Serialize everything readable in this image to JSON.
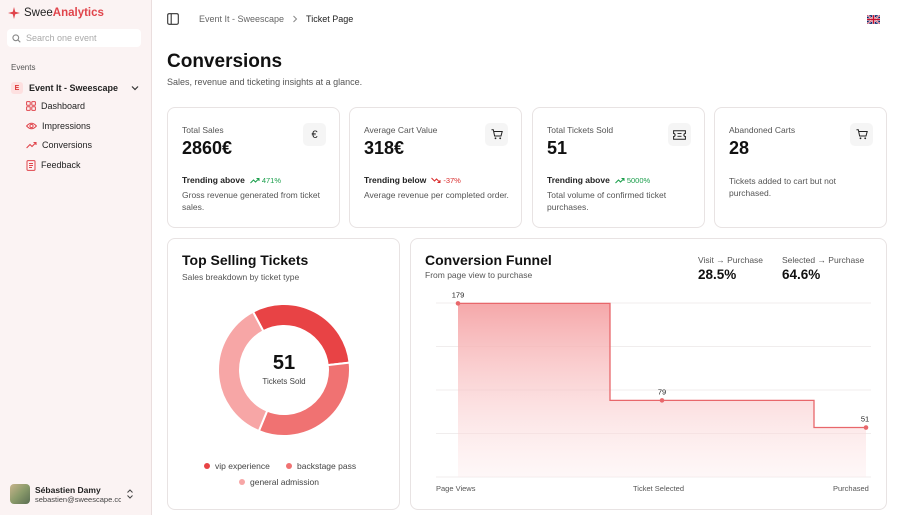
{
  "brand": {
    "part1": "Swee",
    "part2": "Analytics"
  },
  "search": {
    "placeholder": "Search one event"
  },
  "sidebar": {
    "section_label": "Events",
    "event": {
      "badge": "E",
      "name": "Event It - Sweescape"
    },
    "items": [
      {
        "label": "Dashboard",
        "icon": "dashboard-icon"
      },
      {
        "label": "Impressions",
        "icon": "eye-icon"
      },
      {
        "label": "Conversions",
        "icon": "trending-up-icon"
      },
      {
        "label": "Feedback",
        "icon": "feedback-icon"
      }
    ],
    "user": {
      "name": "Sébastien Damy",
      "email": "sebastien@sweescape.com"
    }
  },
  "breadcrumb": {
    "parent": "Event It - Sweescape",
    "current": "Ticket Page"
  },
  "header": {
    "title": "Conversions",
    "subtitle": "Sales, revenue and ticketing insights at a glance."
  },
  "metrics": [
    {
      "label": "Total Sales",
      "value": "2860€",
      "icon": "euro-icon",
      "icon_glyph": "€",
      "trend_label": "Trending above",
      "trend_pct": "471%",
      "trend_dir": "up",
      "desc": "Gross revenue generated from ticket sales."
    },
    {
      "label": "Average Cart Value",
      "value": "318€",
      "icon": "cart-icon",
      "trend_label": "Trending below",
      "trend_pct": "-37%",
      "trend_dir": "down",
      "desc": "Average revenue per completed order."
    },
    {
      "label": "Total Tickets Sold",
      "value": "51",
      "icon": "ticket-icon",
      "trend_label": "Trending above",
      "trend_pct": "5000%",
      "trend_dir": "up",
      "desc": "Total volume of confirmed ticket purchases."
    },
    {
      "label": "Abandoned Carts",
      "value": "28",
      "icon": "cart-icon",
      "desc": "Tickets added to cart but not purchased."
    }
  ],
  "top_selling": {
    "title": "Top Selling Tickets",
    "subtitle": "Sales breakdown by ticket type",
    "center_value": "51",
    "center_label": "Tickets Sold"
  },
  "funnel": {
    "title": "Conversion Funnel",
    "subtitle": "From page view to purchase",
    "stats": [
      {
        "label": "Visit → Purchase",
        "value": "28.5%"
      },
      {
        "label": "Selected → Purchase",
        "value": "64.6%"
      }
    ]
  },
  "colors": {
    "accent": "#e0444b",
    "vip": "#e84345",
    "backstage": "#f07272",
    "general": "#f7a6a6",
    "trend_up": "#1a9e4b",
    "trend_down": "#d92b2b"
  },
  "chart_data": [
    {
      "type": "pie",
      "donut": true,
      "title": "Top Selling Tickets",
      "labels": [
        "vip experience",
        "backstage pass",
        "general admission"
      ],
      "values": [
        0.31,
        0.33,
        0.36
      ],
      "colors": [
        "#e84345",
        "#f07272",
        "#f7a6a6"
      ],
      "center_text": "51 Tickets Sold",
      "legend": "bottom"
    },
    {
      "type": "area",
      "step": true,
      "title": "Conversion Funnel",
      "categories": [
        "Page Views",
        "Ticket Selected",
        "Purchased"
      ],
      "values": [
        179,
        79,
        51
      ],
      "ylim": [
        0,
        200
      ],
      "grid": true
    }
  ]
}
